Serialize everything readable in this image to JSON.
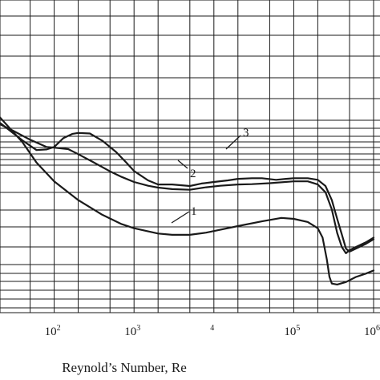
{
  "chart_data": {
    "type": "line",
    "xlabel": "Reynold’s Number, Re",
    "x_scale": "log",
    "xlim": [
      10,
      1000000
    ],
    "ylim": [
      0,
      1
    ],
    "y_scale": "log",
    "grid": true,
    "x_tick_labels": [
      {
        "value": 100,
        "base": "10",
        "exp": "2"
      },
      {
        "value": 1000,
        "base": "10",
        "exp": "3"
      },
      {
        "value": 10000,
        "base": "",
        "exp": "4"
      },
      {
        "value": 100000,
        "base": "10",
        "exp": "5"
      },
      {
        "value": 1000000,
        "base": "10",
        "exp": "6"
      }
    ],
    "series": [
      {
        "name": "1",
        "x": [
          10,
          20,
          40,
          60,
          100,
          200,
          400,
          700,
          1000,
          2000,
          3000,
          5000,
          8000,
          12000,
          20000,
          40000,
          70000,
          100000,
          150000,
          200000,
          230000,
          260000,
          280000,
          300000,
          350000,
          450000,
          600000,
          800000,
          1000000
        ],
        "y": [
          0.706,
          0.63,
          0.545,
          0.48,
          0.42,
          0.36,
          0.313,
          0.283,
          0.27,
          0.253,
          0.249,
          0.249,
          0.256,
          0.265,
          0.277,
          0.292,
          0.303,
          0.3,
          0.29,
          0.27,
          0.24,
          0.17,
          0.115,
          0.093,
          0.09,
          0.098,
          0.114,
          0.125,
          0.135
        ]
      },
      {
        "name": "2",
        "x": [
          10,
          20,
          30,
          50,
          80,
          100,
          150,
          200,
          300,
          500,
          700,
          1000,
          1500,
          2000,
          3000,
          5000,
          8000,
          12000,
          20000,
          30000,
          50000,
          100000,
          150000,
          200000,
          250000,
          300000,
          350000,
          400000,
          450000,
          500000,
          600000,
          800000,
          1000000
        ],
        "y": [
          0.638,
          0.605,
          0.583,
          0.553,
          0.53,
          0.528,
          0.523,
          0.507,
          0.483,
          0.452,
          0.434,
          0.418,
          0.406,
          0.4,
          0.395,
          0.393,
          0.401,
          0.406,
          0.41,
          0.411,
          0.414,
          0.42,
          0.42,
          0.41,
          0.385,
          0.33,
          0.255,
          0.21,
          0.19,
          0.2,
          0.21,
          0.225,
          0.24
        ]
      },
      {
        "name": "3",
        "x": [
          10,
          20,
          30,
          40,
          60,
          80,
          100,
          130,
          170,
          200,
          280,
          400,
          600,
          800,
          1000,
          1500,
          2000,
          3000,
          5000,
          7000,
          10000,
          15000,
          20000,
          30000,
          40000,
          60000,
          80000,
          100000,
          150000,
          200000,
          250000,
          300000,
          350000,
          400000,
          450000,
          500000,
          600000,
          800000,
          1000000
        ],
        "y": [
          0.67,
          0.611,
          0.576,
          0.551,
          0.52,
          0.522,
          0.53,
          0.558,
          0.572,
          0.575,
          0.573,
          0.55,
          0.513,
          0.48,
          0.453,
          0.423,
          0.41,
          0.41,
          0.405,
          0.413,
          0.418,
          0.423,
          0.428,
          0.43,
          0.43,
          0.425,
          0.428,
          0.43,
          0.43,
          0.425,
          0.405,
          0.36,
          0.3,
          0.25,
          0.205,
          0.195,
          0.205,
          0.22,
          0.235
        ]
      }
    ]
  }
}
